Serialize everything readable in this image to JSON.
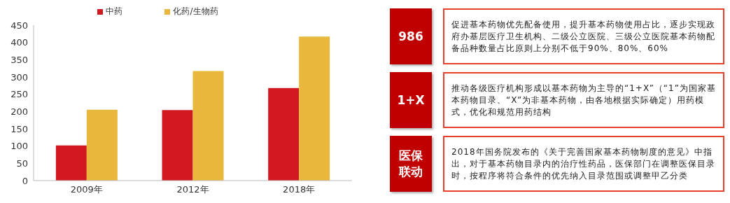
{
  "chart_data": [
    {
      "type": "bar",
      "categories": [
        "2009年",
        "2012年",
        "2018年"
      ],
      "series": [
        {
          "name": "中药",
          "color": "#d2181f",
          "values": [
            102,
            204,
            268
          ]
        },
        {
          "name": "化药/生物药",
          "color": "#e9b73b",
          "values": [
            205,
            317,
            417
          ]
        }
      ],
      "ylim": [
        0,
        450
      ],
      "yticks": [
        0,
        50,
        100,
        150,
        200,
        250,
        300,
        350,
        400,
        450
      ],
      "grid": false,
      "legend": "top"
    },
    {
      "type": "other",
      "categories": [
        "986",
        "1+X",
        "医保联动"
      ],
      "annotations": [
        "促进基本药物优先配备使用，提升基本药物使用占比，逐步实现政府办基层医疗卫生机构、二级公立医院、三级公立医院基本药物配备品种数量占比原则上分别不低于90%、80%、60%",
        "推动各级医疗机构形成以基本药物为主导的“1+X”（“1”为国家基本药物目录、“X”为非基本药物，由各地根据实际确定）用药模式，优化和规范用药结构",
        "2018年国务院发布的《关于完善国家基本药物制度的意见》中指出，对于基本药物目录内的治疗性药品，医保部门在调整医保目录时，按程序将符合条件的优先纳入目录范围或调整甲乙分类"
      ]
    }
  ]
}
